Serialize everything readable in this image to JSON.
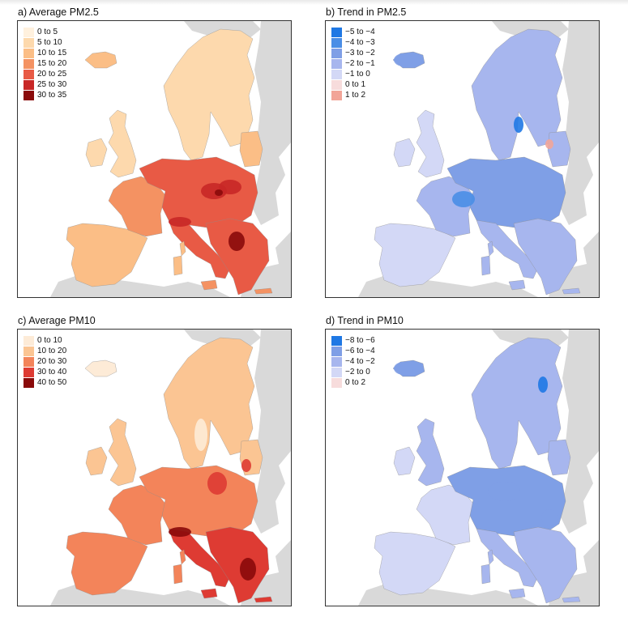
{
  "panels": {
    "a": {
      "title": "a) Average PM2.5",
      "legend": [
        {
          "label": "0 to 5",
          "color": "#fff1de"
        },
        {
          "label": "5 to 10",
          "color": "#fdd9ad"
        },
        {
          "label": "10 to 15",
          "color": "#fbbe86"
        },
        {
          "label": "15 to 20",
          "color": "#f49262"
        },
        {
          "label": "20 to 25",
          "color": "#e85a45"
        },
        {
          "label": "25 to 30",
          "color": "#c82726"
        },
        {
          "label": "30 to 35",
          "color": "#8a0a0a"
        }
      ]
    },
    "b": {
      "title": "b) Trend in PM2.5",
      "legend": [
        {
          "label": "−5 to −4",
          "color": "#1f78e4"
        },
        {
          "label": "−4 to −3",
          "color": "#4a8ee6"
        },
        {
          "label": "−3 to −2",
          "color": "#7f9fe6"
        },
        {
          "label": "−2 to −1",
          "color": "#a7b6ee"
        },
        {
          "label": "−1 to 0",
          "color": "#d3d8f6"
        },
        {
          "label": "0 to 1",
          "color": "#f7dcdc"
        },
        {
          "label": "1 to 2",
          "color": "#f2a598"
        }
      ]
    },
    "c": {
      "title": "c) Average PM10",
      "legend": [
        {
          "label": "0 to 10",
          "color": "#fdebd7"
        },
        {
          "label": "10 to 20",
          "color": "#fbc593"
        },
        {
          "label": "20 to 30",
          "color": "#f3845a"
        },
        {
          "label": "30 to 40",
          "color": "#de3b33"
        },
        {
          "label": "40 to 50",
          "color": "#8a0a0a"
        }
      ]
    },
    "d": {
      "title": "d) Trend in PM10",
      "legend": [
        {
          "label": "−8 to −6",
          "color": "#1f78e4"
        },
        {
          "label": "−6 to −4",
          "color": "#7f9fe6"
        },
        {
          "label": "−4 to −2",
          "color": "#a7b6ee"
        },
        {
          "label": "−2 to 0",
          "color": "#d3d8f6"
        },
        {
          "label": "0 to 2",
          "color": "#f7dcdc"
        }
      ]
    }
  },
  "colors": {
    "background_land": "#d9d9d9",
    "sea": "#ffffff"
  }
}
